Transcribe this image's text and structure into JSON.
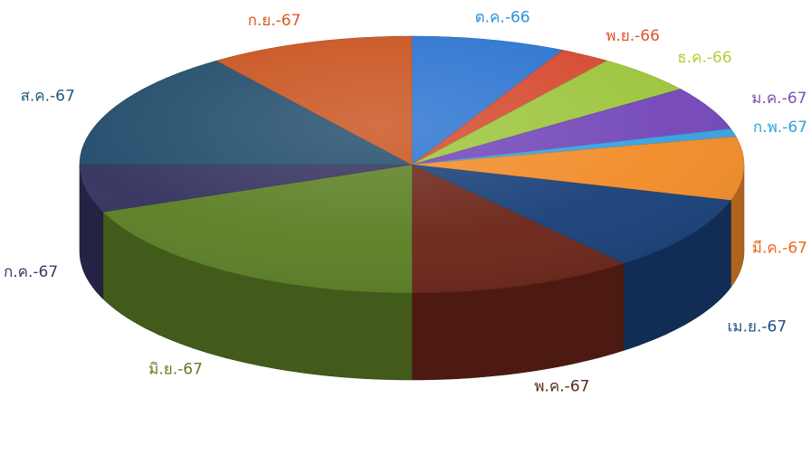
{
  "chart_data": {
    "type": "pie",
    "style": "3d",
    "title": "",
    "legend": "none",
    "start": "top, clockwise",
    "slices": [
      {
        "label": "ต.ค.-66",
        "value": 7.5,
        "color": "#2a73d0",
        "label_color": "#2f8fd8"
      },
      {
        "label": "พ.ย.-66",
        "value": 2.5,
        "color": "#d5472c",
        "label_color": "#e2532a"
      },
      {
        "label": "ธ.ค.-66",
        "value": 5.0,
        "color": "#9cc43a",
        "label_color": "#b5cf3a"
      },
      {
        "label": "ม.ค.-67",
        "value": 5.5,
        "color": "#7245b8",
        "label_color": "#7d4fb6"
      },
      {
        "label": "ก.พ.-67",
        "value": 1.0,
        "color": "#35a0e0",
        "label_color": "#2fa4dc"
      },
      {
        "label": "มี.ค.-67",
        "value": 8.0,
        "color": "#f18b28",
        "label_color": "#e8691f"
      },
      {
        "label": "เม.ย.-67",
        "value": 9.5,
        "color": "#173f78",
        "label_color": "#1f4f86"
      },
      {
        "label": "พ.ค.-67",
        "value": 11.0,
        "color": "#6b2418",
        "label_color": "#5a2a1e"
      },
      {
        "label": "มิ.ย.-67",
        "value": 19.0,
        "color": "#5b7f24",
        "label_color": "#5e7d26"
      },
      {
        "label": "ก.ค.-67",
        "value": 6.0,
        "color": "#34315e",
        "label_color": "#3d3b66"
      },
      {
        "label": "ส.ค.-67",
        "value": 15.0,
        "color": "#1f4b6a",
        "label_color": "#215a80"
      },
      {
        "label": "ก.ย.-67",
        "value": 10.0,
        "color": "#c8511c",
        "label_color": "#d9591f"
      }
    ]
  }
}
